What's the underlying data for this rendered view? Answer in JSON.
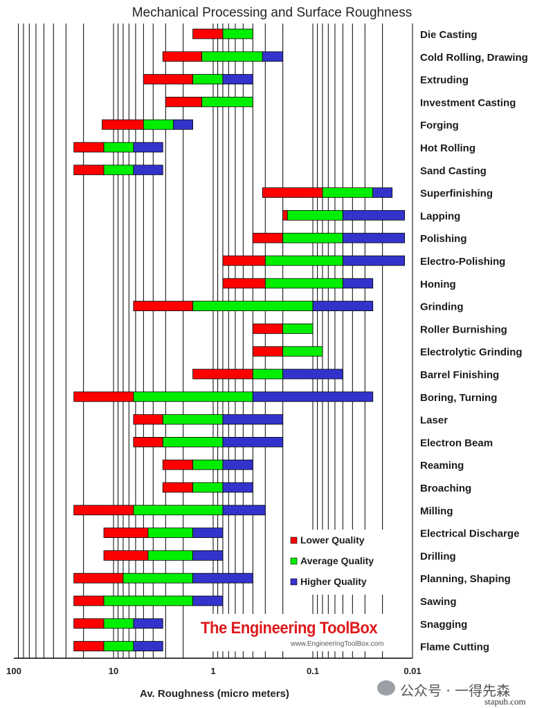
{
  "chart_data": {
    "type": "bar",
    "title": "Mechanical Processing and Surface Roughness",
    "xlabel": "Av. Roughness (micro meters)",
    "x_scale": "log",
    "x_reversed": true,
    "xlim": [
      100,
      0.01
    ],
    "x_ticks": [
      "100",
      "10",
      "1",
      "0.1",
      "0.01"
    ],
    "legend": {
      "placement": "lower-right",
      "entries": [
        {
          "name": "Lower Quality",
          "color": "#ff0000"
        },
        {
          "name": "Average Quality",
          "color": "#00ee00"
        },
        {
          "name": "Higher Quality",
          "color": "#3333cc"
        }
      ]
    },
    "series_order": [
      "Lower Quality",
      "Average Quality",
      "Higher Quality"
    ],
    "categories": [
      {
        "name": "Die Casting",
        "values": [
          1.6,
          0.8,
          0.4,
          0.4
        ]
      },
      {
        "name": "Cold Rolling, Drawing",
        "values": [
          3.2,
          1.3,
          0.32,
          0.2
        ]
      },
      {
        "name": "Extruding",
        "values": [
          5,
          1.6,
          0.8,
          0.4
        ]
      },
      {
        "name": "Investment Casting",
        "values": [
          3,
          1.3,
          0.4,
          0.4
        ]
      },
      {
        "name": "Forging",
        "values": [
          13,
          5,
          2.5,
          1.6
        ]
      },
      {
        "name": "Hot Rolling",
        "values": [
          25,
          12.5,
          6.3,
          3.2
        ]
      },
      {
        "name": "Sand Casting",
        "values": [
          25,
          12.5,
          6.3,
          3.2
        ]
      },
      {
        "name": "Superfinishing",
        "values": [
          0.32,
          0.08,
          0.025,
          0.016
        ]
      },
      {
        "name": "Lapping",
        "values": [
          0.2,
          0.18,
          0.05,
          0.012
        ]
      },
      {
        "name": "Polishing",
        "values": [
          0.4,
          0.2,
          0.05,
          0.012
        ]
      },
      {
        "name": "Electro-Polishing",
        "values": [
          0.8,
          0.3,
          0.05,
          0.012
        ]
      },
      {
        "name": "Honing",
        "values": [
          0.8,
          0.3,
          0.05,
          0.025
        ]
      },
      {
        "name": "Grinding",
        "values": [
          6.3,
          1.6,
          0.1,
          0.025
        ]
      },
      {
        "name": "Roller Burnishing",
        "values": [
          0.4,
          0.2,
          0.1,
          0.1
        ]
      },
      {
        "name": "Electrolytic Grinding",
        "values": [
          0.4,
          0.2,
          0.08,
          0.1
        ]
      },
      {
        "name": "Barrel Finishing",
        "values": [
          1.6,
          0.4,
          0.2,
          0.05
        ]
      },
      {
        "name": "Boring, Turning",
        "values": [
          25,
          6.3,
          0.4,
          0.025
        ]
      },
      {
        "name": "Laser",
        "values": [
          6.3,
          3.2,
          0.8,
          0.2
        ]
      },
      {
        "name": "Electron Beam",
        "values": [
          6.3,
          3.2,
          0.8,
          0.2
        ]
      },
      {
        "name": "Reaming",
        "values": [
          3.2,
          1.6,
          0.8,
          0.4
        ]
      },
      {
        "name": "Broaching",
        "values": [
          3.2,
          1.6,
          0.8,
          0.4
        ]
      },
      {
        "name": "Milling",
        "values": [
          25,
          6.3,
          0.8,
          0.3
        ]
      },
      {
        "name": "Electrical Discharge",
        "values": [
          12.5,
          4.5,
          1.6,
          0.8
        ]
      },
      {
        "name": "Drilling",
        "values": [
          12.5,
          4.5,
          1.6,
          0.8
        ]
      },
      {
        "name": "Planning, Shaping",
        "values": [
          25,
          8,
          1.6,
          0.4
        ]
      },
      {
        "name": "Sawing",
        "values": [
          25,
          12.5,
          1.6,
          0.8
        ]
      },
      {
        "name": "Snagging",
        "values": [
          25,
          12.5,
          6.3,
          3.2
        ]
      },
      {
        "name": "Flame Cutting",
        "values": [
          25,
          12.5,
          6.3,
          3.2
        ]
      }
    ]
  },
  "watermark": {
    "toolbox_name": "The Engineering ToolBox",
    "toolbox_url": "www.EngineeringToolBox.com",
    "account": "公众号 · 一得先森",
    "site": "stapub.com"
  }
}
